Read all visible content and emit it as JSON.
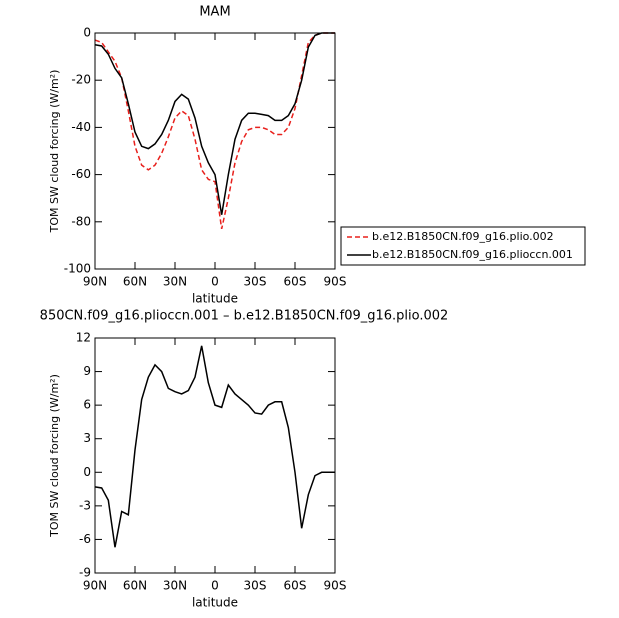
{
  "chart_data": [
    {
      "type": "line",
      "title": "MAM",
      "ylabel": "TOM SW cloud forcing (W/m²)",
      "xlabel": "latitude",
      "x": [
        90,
        85,
        80,
        75,
        70,
        65,
        60,
        55,
        50,
        45,
        40,
        35,
        30,
        25,
        20,
        15,
        10,
        5,
        0,
        -5,
        -10,
        -15,
        -20,
        -25,
        -30,
        -35,
        -40,
        -45,
        -50,
        -55,
        -60,
        -65,
        -70,
        -75,
        -80,
        -85,
        -90
      ],
      "series": [
        {
          "name": "b.e12.B1850CN.f09_g16.plio.002",
          "color": "#e8201c",
          "style": "dashed",
          "values": [
            -3,
            -4,
            -8,
            -12,
            -19,
            -33,
            -48,
            -56,
            -58,
            -56,
            -51,
            -44,
            -36,
            -33,
            -35,
            -45,
            -58,
            -62,
            -63,
            -83,
            -70,
            -55,
            -46,
            -41,
            -40,
            -40,
            -41,
            -43,
            -43,
            -40,
            -32,
            -18,
            -4,
            -1,
            0,
            0,
            0
          ]
        },
        {
          "name": "b.e12.B1850CN.f09_g16.plioccn.001",
          "color": "#000000",
          "style": "solid",
          "values": [
            -5,
            -5.5,
            -9,
            -15,
            -19,
            -30,
            -42,
            -48,
            -49,
            -47,
            -43,
            -37,
            -29,
            -26,
            -28,
            -36,
            -48,
            -55,
            -60,
            -77,
            -60,
            -45,
            -37,
            -34,
            -34,
            -34.5,
            -35,
            -37,
            -37,
            -35,
            -30,
            -20,
            -6,
            -1,
            0,
            0,
            0
          ]
        }
      ],
      "xlim": [
        90,
        -90
      ],
      "xticks": [
        {
          "value": 90,
          "label": "90N"
        },
        {
          "value": 60,
          "label": "60N"
        },
        {
          "value": 30,
          "label": "30N"
        },
        0,
        {
          "value": -30,
          "label": "30S"
        },
        {
          "value": -60,
          "label": "60S"
        },
        {
          "value": -90,
          "label": "90S"
        }
      ],
      "ylim": [
        -100,
        0
      ],
      "yticks": [
        -100,
        -80,
        -60,
        -40,
        -20,
        0
      ],
      "legend": "right"
    },
    {
      "type": "line",
      "title": "850CN.f09_g16.plioccn.001 – b.e12.B1850CN.f09_g16.plio.002",
      "ylabel": "TOM SW cloud forcing (W/m²)",
      "xlabel": "latitude",
      "x": [
        90,
        85,
        80,
        75,
        70,
        65,
        60,
        55,
        50,
        45,
        40,
        35,
        30,
        25,
        20,
        15,
        10,
        5,
        0,
        -5,
        -10,
        -15,
        -20,
        -25,
        -30,
        -35,
        -40,
        -45,
        -50,
        -55,
        -60,
        -65,
        -70,
        -75,
        -80,
        -85,
        -90
      ],
      "series": [
        {
          "color": "#000000",
          "style": "solid",
          "values": [
            -1.3,
            -1.4,
            -2.5,
            -6.7,
            -3.5,
            -3.8,
            2,
            6.5,
            8.5,
            9.6,
            9,
            7.5,
            7.2,
            7,
            7.3,
            8.5,
            11.3,
            8,
            6,
            5.8,
            7.8,
            7,
            6.5,
            6,
            5.3,
            5.2,
            6,
            6.3,
            6.3,
            4,
            0,
            -5,
            -2,
            -0.3,
            0,
            0,
            0
          ]
        }
      ],
      "xlim": [
        90,
        -90
      ],
      "xticks": [
        {
          "value": 90,
          "label": "90N"
        },
        {
          "value": 60,
          "label": "60N"
        },
        {
          "value": 30,
          "label": "30N"
        },
        0,
        {
          "value": -30,
          "label": "30S"
        },
        {
          "value": -60,
          "label": "60S"
        },
        {
          "value": -90,
          "label": "90S"
        }
      ],
      "ylim": [
        -9,
        12
      ],
      "yticks": [
        -9,
        -6,
        -3,
        0,
        3,
        6,
        9,
        12
      ]
    }
  ]
}
